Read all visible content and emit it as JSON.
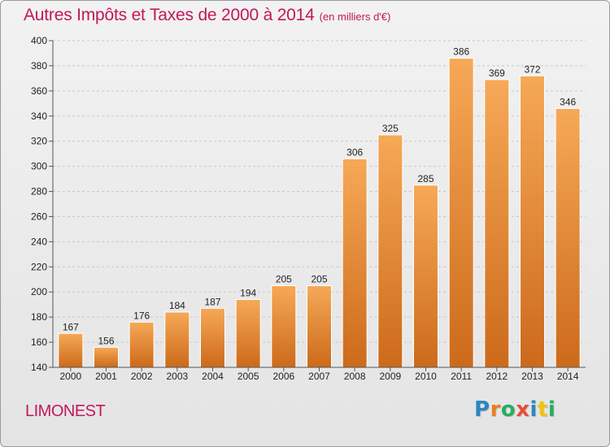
{
  "title": "Autres Impôts et Taxes de 2000 à 2014",
  "subtitle": "(en milliers d'€)",
  "place": "LIMONEST",
  "logo": {
    "letters": [
      "P",
      "r",
      "o",
      "x",
      "i",
      "t",
      "i"
    ],
    "colors": [
      "#2e86c1",
      "#e67e22",
      "#27ae60",
      "#e74c3c",
      "#2e86c1",
      "#f1c40f",
      "#27ae60"
    ]
  },
  "colors": {
    "bar_top": "#f6a957",
    "bar_bottom": "#cc6a1a",
    "title": "#c2185b",
    "grid": "#c8c8c8"
  },
  "chart_data": {
    "type": "bar",
    "title": "Autres Impôts et Taxes de 2000 à 2014",
    "categories": [
      "2000",
      "2001",
      "2002",
      "2003",
      "2004",
      "2005",
      "2006",
      "2007",
      "2008",
      "2009",
      "2010",
      "2011",
      "2012",
      "2013",
      "2014"
    ],
    "values": [
      167,
      156,
      176,
      184,
      187,
      194,
      205,
      205,
      306,
      325,
      285,
      386,
      369,
      372,
      346
    ],
    "ylim": [
      140,
      400
    ],
    "yticks": [
      140,
      160,
      180,
      200,
      220,
      240,
      260,
      280,
      300,
      320,
      340,
      360,
      380,
      400
    ],
    "grid": true,
    "data_labels": true
  }
}
